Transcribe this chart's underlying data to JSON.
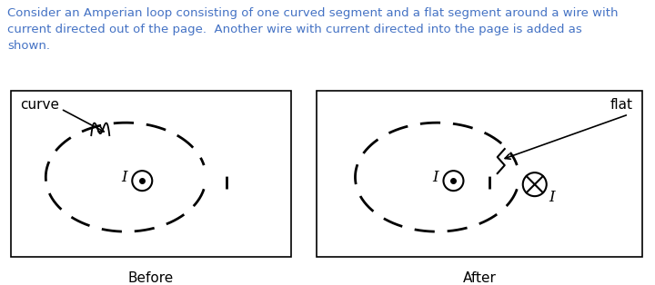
{
  "background_color": "#ffffff",
  "text_color": "#000000",
  "description_color": "#4472c4",
  "description_lines": [
    "Consider an Amperian loop consisting of one curved segment and a flat segment around a wire with",
    "current directed out of the page.  Another wire with current directed into the page is added as",
    "shown."
  ],
  "before_label": "Before",
  "after_label": "After",
  "curve_label": "curve",
  "flat_label": "flat",
  "desc_fontsize": 9.5,
  "label_fontsize": 11
}
